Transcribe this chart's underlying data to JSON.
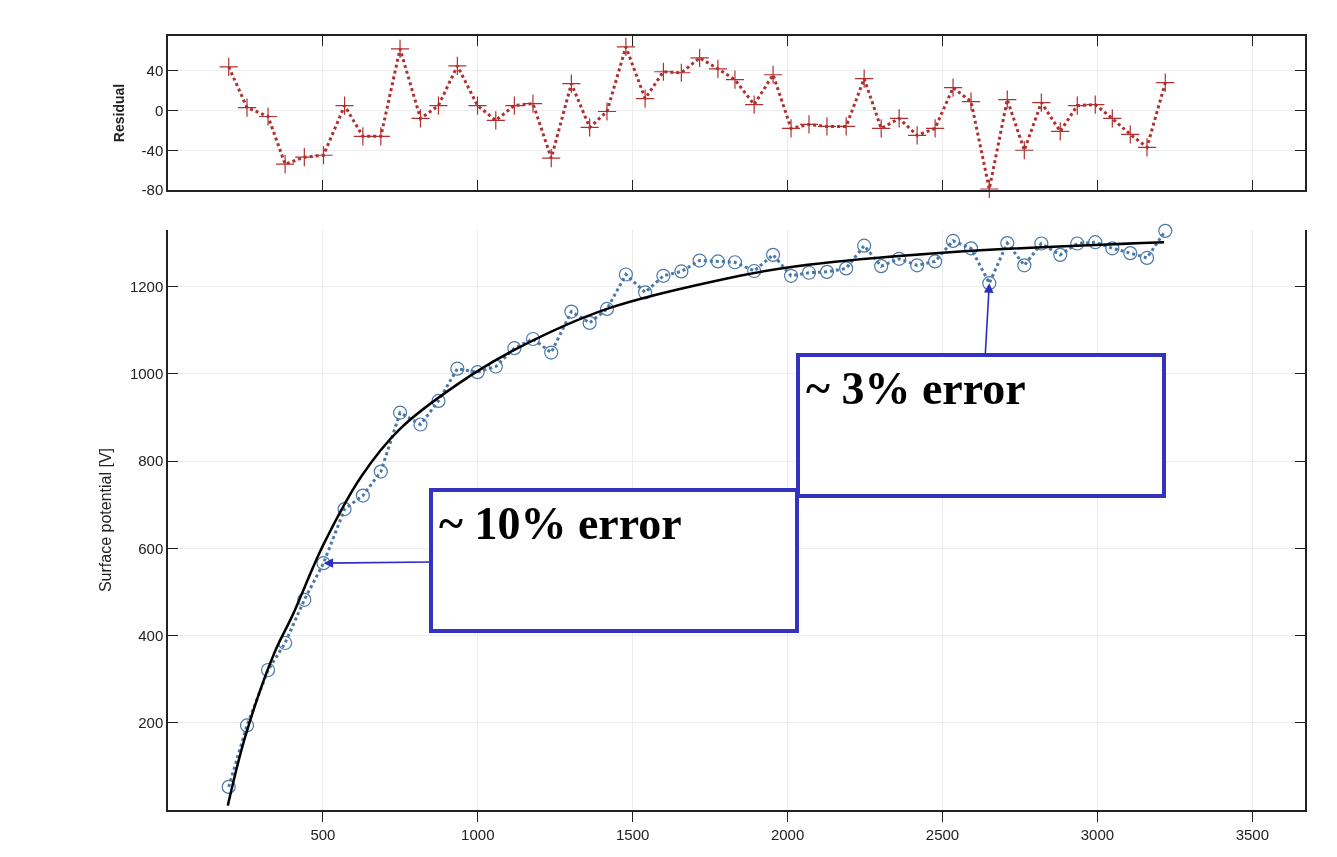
{
  "chart_data": [
    {
      "type": "line",
      "ylabel": "Residual",
      "xlim": [
        0,
        3670
      ],
      "xticks": [
        {
          "value": 500,
          "label": null
        },
        {
          "value": 1000,
          "label": null
        },
        {
          "value": 1500,
          "label": null
        },
        {
          "value": 2000,
          "label": null
        },
        {
          "value": 2500,
          "label": null
        },
        {
          "value": 3000,
          "label": null
        },
        {
          "value": 3500,
          "label": null
        }
      ],
      "ylim": [
        -80,
        75
      ],
      "yticks": [
        -80,
        -40,
        0,
        40
      ],
      "grid": true,
      "tick_labels": "y",
      "x": [
        196,
        255,
        323,
        378,
        440,
        502,
        570,
        629,
        687,
        749,
        815,
        873,
        934,
        999,
        1058,
        1118,
        1178,
        1237,
        1302,
        1361,
        1417,
        1478,
        1540,
        1599,
        1657,
        1716,
        1775,
        1830,
        1892,
        1953,
        2011,
        2069,
        2127,
        2189,
        2247,
        2302,
        2360,
        2418,
        2476,
        2534,
        2592,
        2651,
        2709,
        2764,
        2819,
        2880,
        2935,
        2993,
        3048,
        3106,
        3160,
        3219
      ],
      "series": [
        {
          "color": "#b03030",
          "marker": "cross",
          "line_style": "dotted",
          "values": [
            44,
            3,
            -6,
            -54,
            -47,
            -45,
            5,
            -26,
            -26,
            62,
            -8,
            5,
            45,
            5,
            -10,
            5,
            7,
            -48,
            27,
            -17,
            -1,
            64,
            12,
            39,
            38,
            53,
            42,
            31,
            6,
            36,
            -18,
            -14,
            -16,
            -16,
            32,
            -18,
            -8,
            -25,
            -18,
            23,
            9,
            -79,
            11,
            -40,
            8,
            -21,
            5,
            6,
            -8,
            -24,
            -37,
            28
          ]
        }
      ]
    },
    {
      "type": "line",
      "ylabel": "Surface potential [V]",
      "xlim": [
        0,
        3670
      ],
      "xticks": [
        500,
        1000,
        1500,
        2000,
        2500,
        3000,
        3500
      ],
      "ylim": [
        0,
        1330
      ],
      "yticks": [
        200,
        400,
        600,
        800,
        1000,
        1200
      ],
      "grid": true,
      "x": [
        196,
        255,
        323,
        378,
        440,
        502,
        570,
        629,
        687,
        749,
        815,
        873,
        934,
        999,
        1058,
        1118,
        1178,
        1237,
        1302,
        1361,
        1417,
        1478,
        1540,
        1599,
        1657,
        1716,
        1775,
        1830,
        1892,
        1953,
        2011,
        2069,
        2127,
        2189,
        2247,
        2302,
        2360,
        2418,
        2476,
        2534,
        2592,
        2651,
        2709,
        2764,
        2819,
        2880,
        2935,
        2993,
        3048,
        3106,
        3160,
        3219
      ],
      "series": [
        {
          "color": "#4a78a8",
          "marker": "circle",
          "line_style": "dotted",
          "values": [
            53,
            194,
            321,
            383,
            482,
            566,
            690,
            721,
            776,
            911,
            884,
            938,
            1012,
            1004,
            1017,
            1059,
            1080,
            1049,
            1143,
            1117,
            1149,
            1228,
            1187,
            1225,
            1235,
            1260,
            1258,
            1256,
            1236,
            1273,
            1225,
            1232,
            1234,
            1242,
            1294,
            1247,
            1264,
            1249,
            1258,
            1305,
            1288,
            1208,
            1300,
            1249,
            1299,
            1273,
            1299,
            1302,
            1288,
            1277,
            1266,
            1328
          ]
        },
        {
          "type": "line",
          "color": "#000000",
          "marker": "none",
          "line_style": "solid",
          "x": [
            193,
            250,
            342,
            403,
            502,
            626,
            749,
            934,
            1118,
            1417,
            1846,
            2029,
            2523,
            3215
          ],
          "values": [
            10,
            170,
            358,
            448,
            609,
            767,
            874,
            976,
            1055,
            1149,
            1225,
            1247,
            1279,
            1302
          ]
        }
      ],
      "annotations": [
        {
          "text": "~ 10% error",
          "x": 502,
          "y": 566
        },
        {
          "text": "~ 3% error",
          "x": 2651,
          "y": 1208
        }
      ]
    }
  ]
}
